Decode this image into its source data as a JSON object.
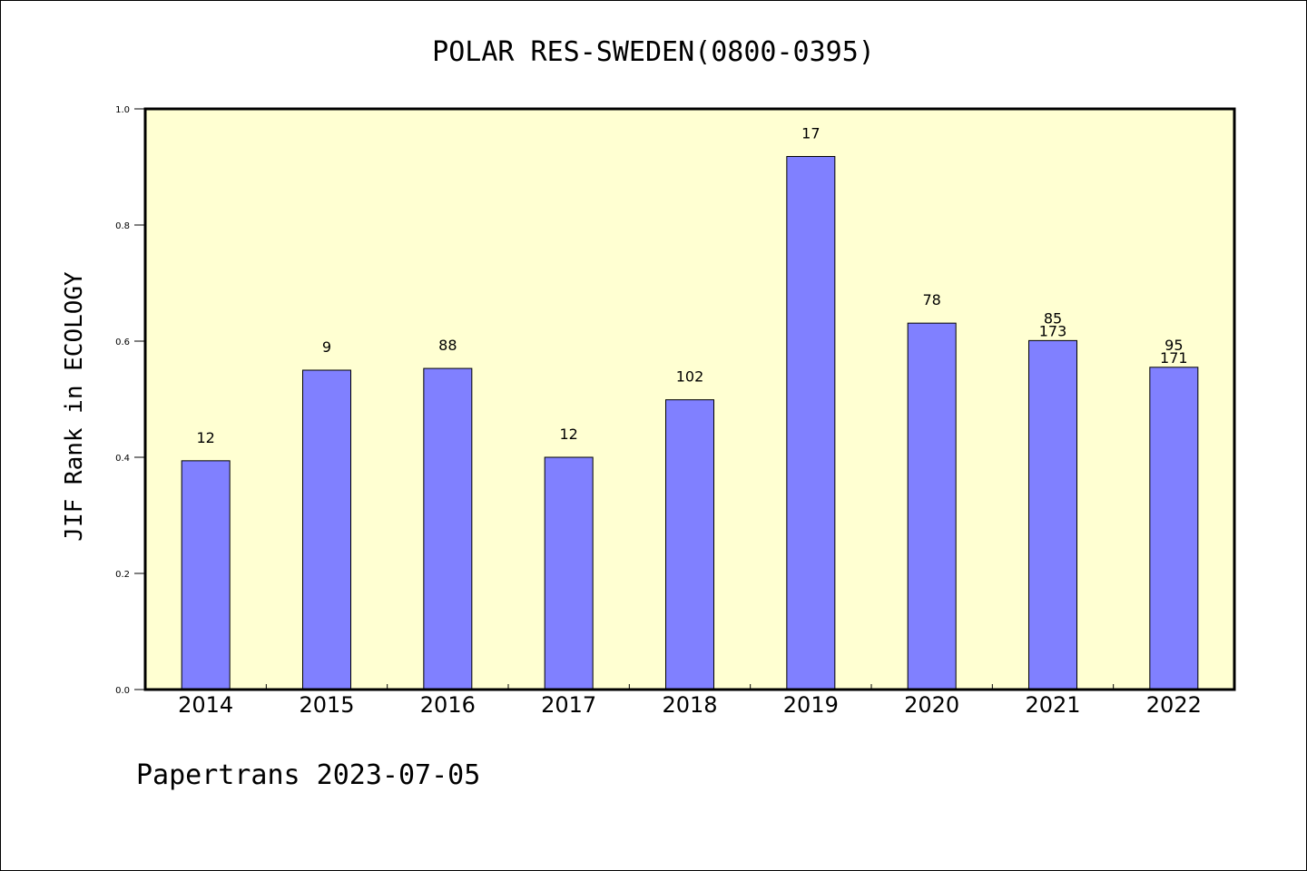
{
  "chart_data": {
    "type": "bar",
    "title": "POLAR RES-SWEDEN(0800-0395)",
    "ylabel": "JIF Rank in ECOLOGY",
    "footer": "Papertrans 2023-07-05",
    "ylim": [
      0,
      1.0
    ],
    "yticks": [
      "0.0",
      "0.2",
      "0.4",
      "0.6",
      "0.8",
      "1.0"
    ],
    "ytick_values": [
      0.0,
      0.2,
      0.4,
      0.6,
      0.8,
      1.0
    ],
    "grid": false,
    "categories": [
      "2014",
      "2015",
      "2016",
      "2017",
      "2018",
      "2019",
      "2020",
      "2021",
      "2022"
    ],
    "values": [
      0.394,
      0.55,
      0.553,
      0.4,
      0.499,
      0.918,
      0.631,
      0.601,
      0.555
    ],
    "labels": [
      [
        "12"
      ],
      [
        "9"
      ],
      [
        "88"
      ],
      [
        "12"
      ],
      [
        "102"
      ],
      [
        "17"
      ],
      [
        "78"
      ],
      [
        "85",
        "173"
      ],
      [
        "95",
        "171"
      ]
    ],
    "colors": {
      "plot_background": "#ffffd2",
      "bar_fill": "#8080ff",
      "bar_stroke": "#000000"
    }
  }
}
